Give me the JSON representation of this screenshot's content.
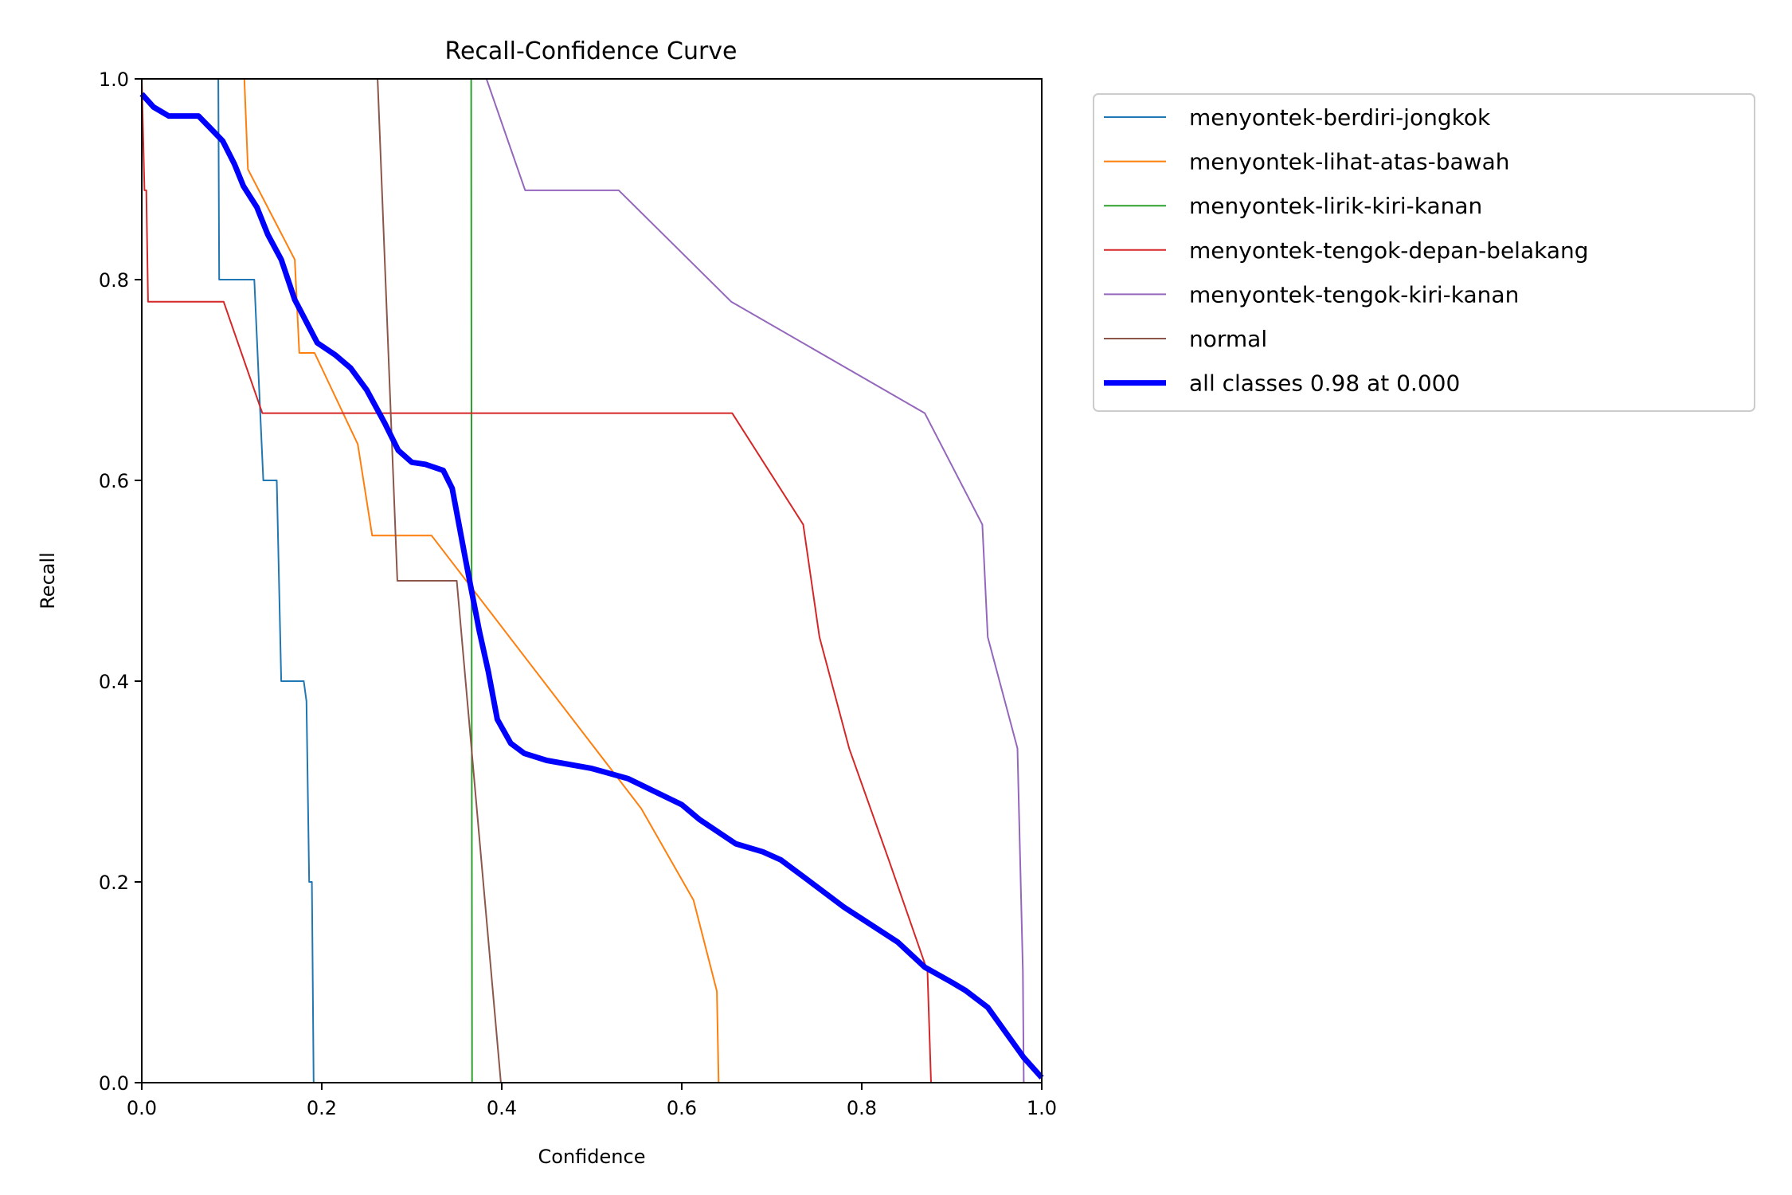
{
  "chart_data": {
    "type": "line",
    "title": "Recall-Confidence Curve",
    "xlabel": "Confidence",
    "ylabel": "Recall",
    "xlim": [
      0,
      1
    ],
    "ylim": [
      0,
      1
    ],
    "xticks": [
      "0.0",
      "0.2",
      "0.4",
      "0.6",
      "0.8",
      "1.0"
    ],
    "yticks": [
      "0.0",
      "0.2",
      "0.4",
      "0.6",
      "0.8",
      "1.0"
    ],
    "grid": false,
    "legend_position": "outside-right-top",
    "series": [
      {
        "name": "menyontek-berdiri-jongkok",
        "color": "#1f77b4",
        "points": [
          [
            0.085,
            1.0
          ],
          [
            0.086,
            0.8
          ],
          [
            0.125,
            0.8
          ],
          [
            0.13,
            0.7
          ],
          [
            0.135,
            0.6
          ],
          [
            0.14,
            0.6
          ],
          [
            0.15,
            0.6
          ],
          [
            0.155,
            0.4
          ],
          [
            0.18,
            0.4
          ],
          [
            0.183,
            0.38
          ],
          [
            0.186,
            0.2
          ],
          [
            0.189,
            0.2
          ],
          [
            0.191,
            0.0
          ],
          [
            1.0,
            0.0
          ]
        ]
      },
      {
        "name": "menyontek-lihat-atas-bawah",
        "color": "#ff7f0e",
        "points": [
          [
            0.114,
            1.0
          ],
          [
            0.118,
            0.91
          ],
          [
            0.17,
            0.82
          ],
          [
            0.175,
            0.727
          ],
          [
            0.192,
            0.727
          ],
          [
            0.24,
            0.636
          ],
          [
            0.256,
            0.545
          ],
          [
            0.322,
            0.545
          ],
          [
            0.555,
            0.273
          ],
          [
            0.613,
            0.182
          ],
          [
            0.639,
            0.091
          ],
          [
            0.641,
            0.0
          ],
          [
            1.0,
            0.0
          ]
        ]
      },
      {
        "name": "menyontek-lirik-kiri-kanan",
        "color": "#2ca02c",
        "points": [
          [
            0.366,
            1.0
          ],
          [
            0.367,
            0.0
          ],
          [
            1.0,
            0.0
          ]
        ]
      },
      {
        "name": "menyontek-tengok-depan-belakang",
        "color": "#d62728",
        "points": [
          [
            0.0,
            1.0
          ],
          [
            0.003,
            0.889
          ],
          [
            0.005,
            0.889
          ],
          [
            0.007,
            0.778
          ],
          [
            0.091,
            0.778
          ],
          [
            0.134,
            0.667
          ],
          [
            0.656,
            0.667
          ],
          [
            0.735,
            0.556
          ],
          [
            0.753,
            0.444
          ],
          [
            0.786,
            0.333
          ],
          [
            0.83,
            0.222
          ],
          [
            0.873,
            0.111
          ],
          [
            0.877,
            0.0
          ],
          [
            1.0,
            0.0
          ]
        ]
      },
      {
        "name": "menyontek-tengok-kiri-kanan",
        "color": "#9467bd",
        "points": [
          [
            0.383,
            1.0
          ],
          [
            0.426,
            0.889
          ],
          [
            0.53,
            0.889
          ],
          [
            0.655,
            0.778
          ],
          [
            0.87,
            0.667
          ],
          [
            0.934,
            0.556
          ],
          [
            0.94,
            0.444
          ],
          [
            0.973,
            0.333
          ],
          [
            0.976,
            0.222
          ],
          [
            0.979,
            0.111
          ],
          [
            0.98,
            0.0
          ],
          [
            1.0,
            0.0
          ]
        ]
      },
      {
        "name": "normal",
        "color": "#8c564b",
        "points": [
          [
            0.262,
            1.0
          ],
          [
            0.284,
            0.5
          ],
          [
            0.35,
            0.5
          ],
          [
            0.399,
            0.0
          ],
          [
            1.0,
            0.0
          ]
        ]
      },
      {
        "name": "all classes 0.98 at 0.000",
        "color": "#0000ff",
        "bold": true,
        "points": [
          [
            0.0,
            0.985
          ],
          [
            0.013,
            0.972
          ],
          [
            0.03,
            0.963
          ],
          [
            0.063,
            0.963
          ],
          [
            0.075,
            0.952
          ],
          [
            0.09,
            0.938
          ],
          [
            0.103,
            0.915
          ],
          [
            0.113,
            0.893
          ],
          [
            0.128,
            0.872
          ],
          [
            0.14,
            0.845
          ],
          [
            0.155,
            0.82
          ],
          [
            0.17,
            0.78
          ],
          [
            0.195,
            0.737
          ],
          [
            0.215,
            0.725
          ],
          [
            0.232,
            0.712
          ],
          [
            0.25,
            0.69
          ],
          [
            0.27,
            0.657
          ],
          [
            0.285,
            0.63
          ],
          [
            0.3,
            0.618
          ],
          [
            0.315,
            0.616
          ],
          [
            0.335,
            0.61
          ],
          [
            0.345,
            0.592
          ],
          [
            0.36,
            0.52
          ],
          [
            0.375,
            0.45
          ],
          [
            0.385,
            0.41
          ],
          [
            0.395,
            0.362
          ],
          [
            0.41,
            0.338
          ],
          [
            0.425,
            0.328
          ],
          [
            0.45,
            0.321
          ],
          [
            0.5,
            0.313
          ],
          [
            0.54,
            0.303
          ],
          [
            0.6,
            0.277
          ],
          [
            0.62,
            0.262
          ],
          [
            0.66,
            0.238
          ],
          [
            0.69,
            0.23
          ],
          [
            0.71,
            0.222
          ],
          [
            0.74,
            0.202
          ],
          [
            0.78,
            0.175
          ],
          [
            0.84,
            0.14
          ],
          [
            0.87,
            0.115
          ],
          [
            0.9,
            0.1
          ],
          [
            0.915,
            0.092
          ],
          [
            0.94,
            0.075
          ],
          [
            0.96,
            0.05
          ],
          [
            0.98,
            0.025
          ],
          [
            1.0,
            0.005
          ]
        ]
      }
    ]
  }
}
